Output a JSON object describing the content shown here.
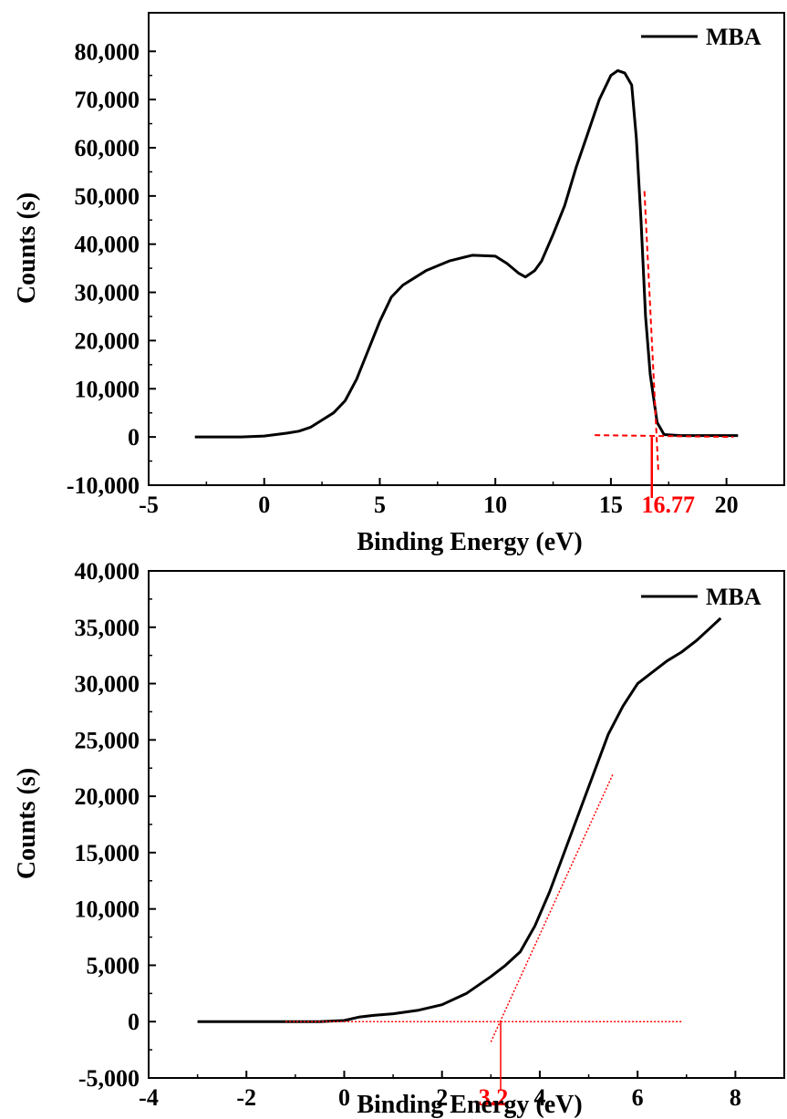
{
  "chart_data": [
    {
      "type": "line",
      "title": "",
      "xlabel": "Binding Energy (eV)",
      "ylabel": "Counts (s)",
      "xlim": [
        -5,
        22.5
      ],
      "ylim": [
        -10000,
        88000
      ],
      "x_ticks": [
        -5,
        0,
        5,
        10,
        15,
        20
      ],
      "x_tick_labels": [
        "-5",
        "0",
        "5",
        "10",
        "15",
        "20"
      ],
      "y_ticks": [
        -10000,
        0,
        10000,
        20000,
        30000,
        40000,
        50000,
        60000,
        70000,
        80000
      ],
      "y_tick_labels": [
        "-10,000",
        "0",
        "10,000",
        "20,000",
        "30,000",
        "40,000",
        "50,000",
        "60,000",
        "70,000",
        "80,000"
      ],
      "legend": {
        "entries": [
          "MBA"
        ],
        "position": "top-right"
      },
      "series": [
        {
          "name": "MBA",
          "color": "#000000",
          "x": [
            -3,
            -1,
            0,
            0.5,
            1,
            1.5,
            2,
            2.5,
            3,
            3.5,
            4,
            4.5,
            5,
            5.5,
            6,
            6.5,
            7,
            8,
            9,
            10,
            10.5,
            11,
            11.3,
            11.7,
            12,
            12.5,
            13,
            13.5,
            14,
            14.5,
            15,
            15.3,
            15.6,
            15.9,
            16.1,
            16.3,
            16.5,
            16.7,
            16.85,
            17,
            17.3,
            18,
            19,
            20,
            20.5
          ],
          "y": [
            0,
            0,
            200,
            500,
            800,
            1200,
            2000,
            3500,
            5000,
            7500,
            12000,
            18000,
            24000,
            29000,
            31500,
            33000,
            34500,
            36500,
            37700,
            37500,
            36000,
            34000,
            33200,
            34500,
            36500,
            42000,
            48000,
            56000,
            63000,
            70000,
            75000,
            76000,
            75500,
            73000,
            62000,
            45000,
            25000,
            13000,
            8000,
            3000,
            500,
            300,
            300,
            300,
            300
          ]
        }
      ],
      "annotation": {
        "label": "16.77",
        "x": 16.77,
        "color": "#ff0000"
      }
    },
    {
      "type": "line",
      "title": "",
      "xlabel": "Binding Energy (eV)",
      "ylabel": "Counts (s)",
      "xlim": [
        -4,
        9
      ],
      "ylim": [
        -5000,
        40000
      ],
      "x_ticks": [
        -4,
        -2,
        0,
        2,
        4,
        6,
        8
      ],
      "x_tick_labels": [
        "-4",
        "-2",
        "0",
        "2",
        "4",
        "6",
        "8"
      ],
      "y_ticks": [
        -5000,
        0,
        5000,
        10000,
        15000,
        20000,
        25000,
        30000,
        35000,
        40000
      ],
      "y_tick_labels": [
        "-5,000",
        "0",
        "5,000",
        "10,000",
        "15,000",
        "20,000",
        "25,000",
        "30,000",
        "35,000",
        "40,000"
      ],
      "legend": {
        "entries": [
          "MBA"
        ],
        "position": "top-right"
      },
      "series": [
        {
          "name": "MBA",
          "color": "#000000",
          "x": [
            -3,
            -2,
            -1,
            -0.5,
            0,
            0.3,
            0.6,
            1,
            1.5,
            2,
            2.5,
            3,
            3.3,
            3.6,
            3.9,
            4.2,
            4.5,
            4.8,
            5.1,
            5.4,
            5.7,
            6,
            6.3,
            6.6,
            6.9,
            7.2,
            7.5,
            7.7
          ],
          "y": [
            0,
            0,
            0,
            0,
            100,
            400,
            550,
            700,
            1000,
            1500,
            2500,
            4000,
            5000,
            6200,
            8500,
            11500,
            15000,
            18500,
            22000,
            25500,
            28000,
            30000,
            31000,
            32000,
            32800,
            33800,
            35000,
            35800
          ]
        }
      ],
      "annotation": {
        "label": "3.2",
        "x": 3.2,
        "color": "#ff0000"
      }
    }
  ]
}
